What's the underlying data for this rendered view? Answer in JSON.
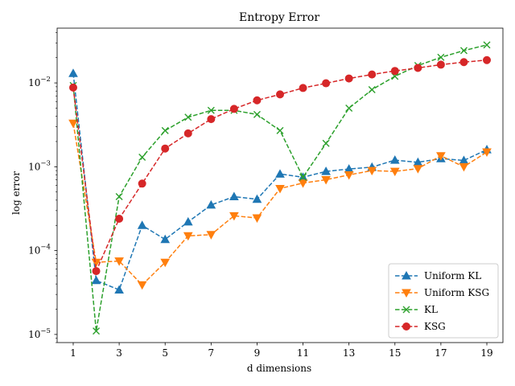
{
  "chart_data": {
    "type": "line",
    "title": "Entropy Error",
    "xlabel": "d dimensions",
    "ylabel": "log error",
    "yscale": "log",
    "xlim": [
      0.3,
      19.7
    ],
    "ylim": [
      8e-06,
      0.045
    ],
    "x_ticks": [
      1,
      3,
      5,
      7,
      9,
      11,
      13,
      15,
      17,
      19
    ],
    "y_ticks": [
      {
        "value": 1e-05,
        "label": "10",
        "exp": "−5"
      },
      {
        "value": 0.0001,
        "label": "10",
        "exp": "−4"
      },
      {
        "value": 0.001,
        "label": "10",
        "exp": "−3"
      },
      {
        "value": 0.01,
        "label": "10",
        "exp": "−2"
      }
    ],
    "legend_position": "lower-right",
    "grid": false,
    "x": [
      1,
      2,
      3,
      4,
      5,
      6,
      7,
      8,
      9,
      10,
      11,
      12,
      13,
      14,
      15,
      16,
      17,
      18,
      19
    ],
    "series": [
      {
        "name": "Uniform KL",
        "color": "#1f77b4",
        "marker": "triangle-up",
        "values": [
          0.013,
          4.4e-05,
          3.4e-05,
          0.0002,
          0.000136,
          0.00022,
          0.00035,
          0.00044,
          0.00041,
          0.00082,
          0.00075,
          0.00088,
          0.00094,
          0.00099,
          0.0012,
          0.00113,
          0.00125,
          0.00119,
          0.0016
        ]
      },
      {
        "name": "Uniform KSG",
        "color": "#ff7f0e",
        "marker": "triangle-down",
        "values": [
          0.0033,
          7.25e-05,
          7.5e-05,
          3.9e-05,
          7.25e-05,
          0.00015,
          0.000155,
          0.00026,
          0.000245,
          0.00055,
          0.00064,
          0.0007,
          0.0008,
          0.0009,
          0.00088,
          0.00095,
          0.00135,
          0.001,
          0.0015
        ]
      },
      {
        "name": "KL",
        "color": "#2ca02c",
        "marker": "x",
        "values": [
          0.0093,
          1.1e-05,
          0.00044,
          0.0013,
          0.0027,
          0.0039,
          0.0047,
          0.0047,
          0.0042,
          0.0027,
          0.00075,
          0.0019,
          0.005,
          0.0083,
          0.012,
          0.0161,
          0.0202,
          0.0243,
          0.0284
        ]
      },
      {
        "name": "KSG",
        "color": "#d62728",
        "marker": "circle",
        "values": [
          0.0088,
          5.7e-05,
          0.00024,
          0.00063,
          0.00165,
          0.0025,
          0.0037,
          0.0049,
          0.0062,
          0.0073,
          0.0087,
          0.0099,
          0.0113,
          0.0126,
          0.0139,
          0.0151,
          0.0165,
          0.0177,
          0.0187
        ]
      }
    ]
  }
}
